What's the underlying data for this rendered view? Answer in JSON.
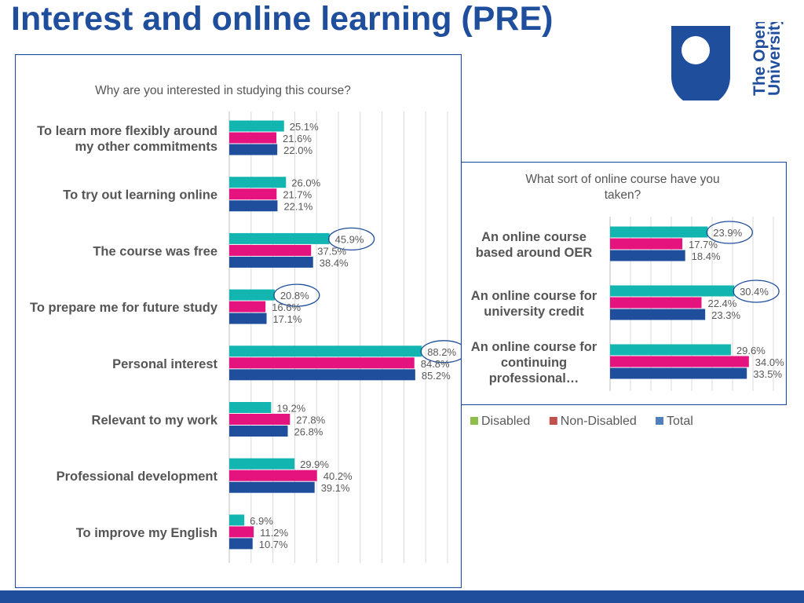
{
  "page_title": "Interest and online learning (PRE)",
  "logo": {
    "icon": "open-university-logo",
    "line1": "The Open",
    "line2": "University"
  },
  "colors": {
    "disabled": "#12b5b0",
    "non_disabled": "#e5137e",
    "total": "#1f4e9c",
    "highlight_ring": "#1f4e9c",
    "title": "#1f4e9c"
  },
  "legend": {
    "placement": "below-right-chart",
    "items": [
      {
        "label": "Disabled",
        "color": "#8dbf4d"
      },
      {
        "label": "Non-Disabled",
        "color": "#c0504d"
      },
      {
        "label": "Total",
        "color": "#4f81bd"
      }
    ]
  },
  "chart_data": [
    {
      "type": "bar",
      "orientation": "horizontal",
      "title": "Why are you interested in studying this course?",
      "xlim": [
        0,
        100
      ],
      "grid": true,
      "categories": [
        [
          "To learn more flexibly around",
          "my other commitments"
        ],
        [
          "To try out learning online"
        ],
        [
          "The course was free"
        ],
        [
          "To prepare me for future study"
        ],
        [
          "Personal interest"
        ],
        [
          "Relevant to my work"
        ],
        [
          "Professional development"
        ],
        [
          "To improve my English"
        ]
      ],
      "series": [
        {
          "name": "Disabled",
          "values": [
            25.1,
            26.0,
            45.9,
            20.8,
            88.2,
            19.2,
            29.9,
            6.9
          ],
          "labels": [
            "25.1%",
            "26.0%",
            "45.9%",
            "20.8%",
            "88.2%",
            "19.2%",
            "29.9%",
            "6.9%"
          ]
        },
        {
          "name": "Non-Disabled",
          "values": [
            21.6,
            21.7,
            37.5,
            16.6,
            84.8,
            27.8,
            40.2,
            11.2
          ],
          "labels": [
            "21.6%",
            "21.7%",
            "37.5%",
            "16.6%",
            "84.8%",
            "27.8%",
            "40.2%",
            "11.2%"
          ]
        },
        {
          "name": "Total",
          "values": [
            22.0,
            22.1,
            38.4,
            17.1,
            85.2,
            26.8,
            39.1,
            10.7
          ],
          "labels": [
            "22.0%",
            "22.1%",
            "38.4%",
            "17.1%",
            "85.2%",
            "26.8%",
            "39.1%",
            "10.7%"
          ]
        }
      ],
      "circled": [
        "45.9%",
        "20.8%",
        "88.2%"
      ]
    },
    {
      "type": "bar",
      "orientation": "horizontal",
      "title": [
        "What sort of online course have you",
        "taken?"
      ],
      "xlim": [
        0,
        40
      ],
      "grid": true,
      "categories": [
        [
          "An online course",
          "based around OER"
        ],
        [
          "An online course for",
          "university credit"
        ],
        [
          "An online course for",
          "continuing",
          "professional…"
        ]
      ],
      "series": [
        {
          "name": "Disabled",
          "values": [
            23.9,
            30.4,
            29.6
          ],
          "labels": [
            "23.9%",
            "30.4%",
            "29.6%"
          ]
        },
        {
          "name": "Non-Disabled",
          "values": [
            17.7,
            22.4,
            34.0
          ],
          "labels": [
            "17.7%",
            "22.4%",
            "34.0%"
          ]
        },
        {
          "name": "Total",
          "values": [
            18.4,
            23.3,
            33.5
          ],
          "labels": [
            "18.4%",
            "23.3%",
            "33.5%"
          ]
        }
      ],
      "circled": [
        "23.9%",
        "30.4%"
      ]
    }
  ]
}
